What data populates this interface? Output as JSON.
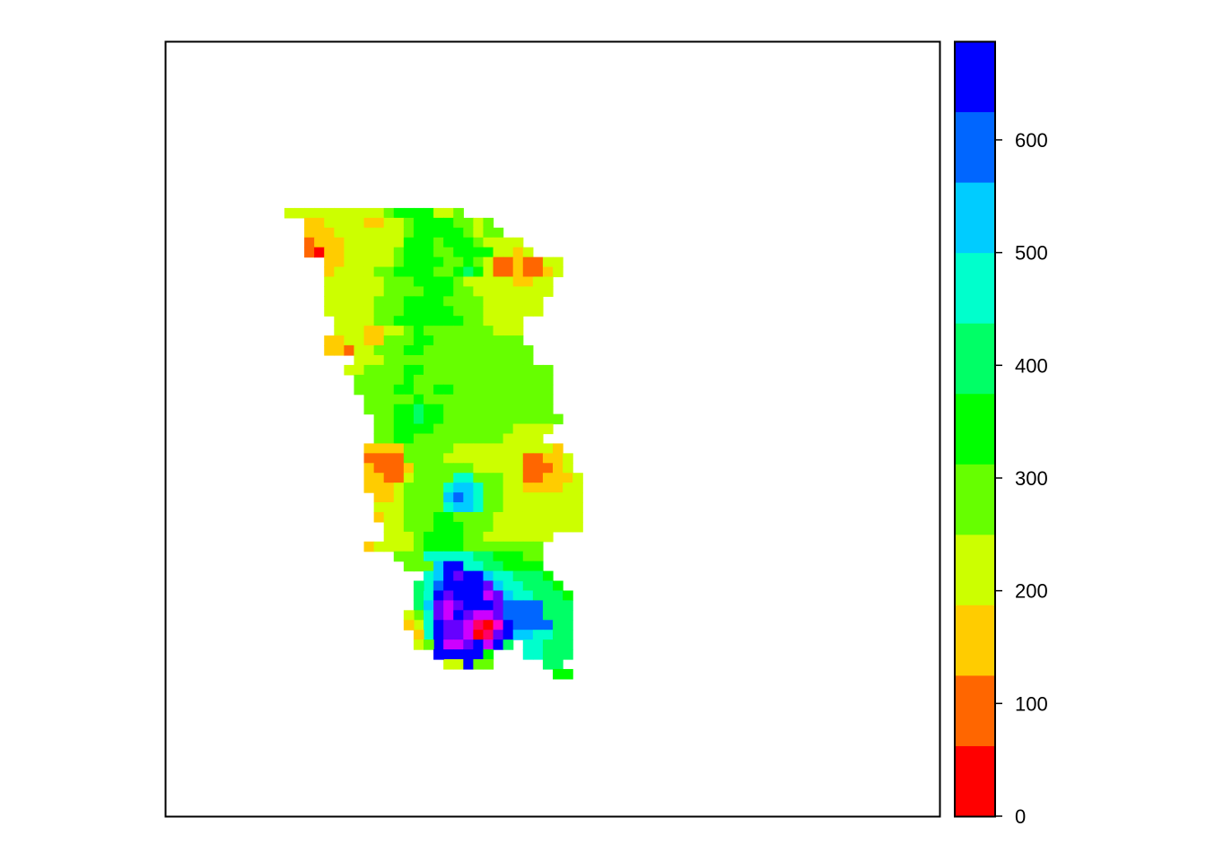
{
  "chart_data": {
    "type": "heatmap",
    "title": "",
    "xlabel": "",
    "ylabel": "",
    "grid": false,
    "legend": "right",
    "colorbar": {
      "range": [
        0,
        687.5
      ],
      "breaks": [
        0,
        62.5,
        125,
        187.5,
        250,
        312.5,
        375,
        437.5,
        500,
        562.5,
        625,
        687.5
      ],
      "colors": [
        "#FF0000",
        "#FF6600",
        "#FFCC00",
        "#CCFF00",
        "#66FF00",
        "#00FF00",
        "#00FF66",
        "#00FFCC",
        "#00CCFF",
        "#0066FF",
        "#0000FF",
        "#6600FF",
        "#CC00FF",
        "#FF00CC",
        "#FF0066",
        "#FF0000"
      ],
      "ticks": [
        {
          "value": 0,
          "label": "0"
        },
        {
          "value": 100,
          "label": "100"
        },
        {
          "value": 200,
          "label": "200"
        },
        {
          "value": 300,
          "label": "300"
        },
        {
          "value": 400,
          "label": "400"
        },
        {
          "value": 500,
          "label": "500"
        },
        {
          "value": 600,
          "label": "600"
        }
      ]
    },
    "grid_cols": 78,
    "grid_rows": 79,
    "row_offset": 16,
    "col_offset": 10,
    "cell_values": [
      "...........................",
      "..DDDDDDDDDDEFFFFDDE........",
      "....CCDDDDCCDDEFFFFEEDE......",
      "....CCCDDDDDDDEFFFFFEDEE....",
      "....BCCCDDDDDDFFFEFFFEDDDD....",
      "....BACCDDDDDEFFFEEFFFFDDCD...",
      "......CCDDDDDEFFFFEEFEDBBCBBDD",
      "......CDDDDEEFFFFEEFGFDBBCBBCD",
      "......DDDDDDEEEFFFFEDDDDDCCDD.",
      "......DDDDDDEEEEFFFEEDDDDDDDD.",
      "......DDDDDEEEFFFFEEEEDDDDDD..",
      "......DDDDDEEEFFFFFEEEDDDDDD..",
      ".......DDDDEEFFFFFFFEEDDDD....",
      ".......DDDCCDDEFEEEEEEEDDD....",
      "......CCDDCCEEEFFEEEEEEEEE....",
      "......CCBDDEEEFFEEEEEEEEEEE...",
      ".........DDDEEEEEEEEEEEEEEE...",
      "........DDEEEEFFEEEEEEEEEEEEE.",
      ".........EEEEEFEEEEEEEEEEEEEE.",
      ".........EEEEFFEEFFEEEEEEEEEE.",
      "..........EEEEEFEEEEEEEEEEEEE.",
      "..........EEEFFGFFEEEEEEEEEEE.",
      "...........EEFFGFFEEEEEEEEEEEE.",
      "...........EEFFFFEEEEEEEEDDDD..",
      "...........EEFFEEEEEEEEEDDDD...",
      "..........CCCCEEEEEDDDDDDDDDDC.",
      "..........BBBBEEEEDDDDDDDDBBCCD.",
      "..........CBBBCEEEEEEDDDDDBBBCD.",
      "..........CCBBDEEEEHHEEEDDBBCCCD",
      "..........CCCDEEEEHIIHEEDDCCCCDD",
      "...........CCDEEEEIJIHEEDDDDDDDD",
      "...........DDDEEEEHIIHEEDDDDDDDD",
      "...........CDDEEEFFEEEEDDDDDDDDD",
      "............DDEEEFFFEEEDDDDDDDDD",
      "............DDEFFHHEEDDDDDDDD...",
      "............DDDDFHHHEEEEEEEE....",
      ".............EEEFFFFFEEEEEEE....",
      "..............EEEFFFFFEEEE......",
      "................FFFGGGGGG.......",
      "................FFGHHHHGGG......",
      "...............CCDDEEGGHHH......",
      "...............BBDDEGGHHH.......",
      "...............CABDFGGIIH.......",
      "...............BBCDFFFHHG.......",
      "................CCDGHHHGG.......",
      ".................CDFFFGGG.......",
      "..................EEEFF.........",
      "..................DDEEE........."
    ],
    "region_cells": [
      [
        12,
        34,
        "D"
      ],
      [
        13,
        34,
        "D"
      ],
      [
        14,
        34,
        "D"
      ],
      [
        15,
        34,
        "E"
      ],
      [
        16,
        34,
        "F"
      ],
      [
        17,
        34,
        "F"
      ],
      [
        18,
        34,
        "F"
      ],
      [
        19,
        34,
        "F"
      ],
      [
        20,
        34,
        "E"
      ],
      [
        21,
        34,
        "E"
      ],
      [
        10,
        35,
        "C"
      ],
      [
        11,
        35,
        "D"
      ],
      [
        12,
        35,
        "D"
      ],
      [
        13,
        35,
        "D"
      ],
      [
        14,
        35,
        "D"
      ],
      [
        15,
        35,
        "E"
      ],
      [
        16,
        35,
        "F"
      ],
      [
        17,
        35,
        "F"
      ],
      [
        18,
        35,
        "F"
      ],
      [
        19,
        35,
        "F"
      ],
      [
        20,
        35,
        "E"
      ],
      [
        21,
        35,
        "E"
      ],
      [
        16,
        36,
        "H"
      ],
      [
        17,
        36,
        "H"
      ],
      [
        18,
        36,
        "H"
      ],
      [
        19,
        36,
        "H"
      ],
      [
        20,
        36,
        "H"
      ],
      [
        21,
        36,
        "G"
      ],
      [
        22,
        36,
        "G"
      ],
      [
        23,
        36,
        "F"
      ],
      [
        24,
        36,
        "F"
      ],
      [
        25,
        36,
        "F"
      ],
      [
        26,
        36,
        "E"
      ],
      [
        17,
        37,
        "I"
      ],
      [
        18,
        37,
        "K"
      ],
      [
        19,
        37,
        "K"
      ],
      [
        20,
        37,
        "H"
      ],
      [
        21,
        37,
        "H"
      ],
      [
        22,
        37,
        "G"
      ],
      [
        23,
        37,
        "G"
      ],
      [
        24,
        37,
        "F"
      ],
      [
        25,
        37,
        "F"
      ],
      [
        26,
        37,
        "F"
      ],
      [
        27,
        37,
        "F"
      ],
      [
        16,
        38,
        "H"
      ],
      [
        17,
        38,
        "I"
      ],
      [
        18,
        38,
        "K"
      ],
      [
        19,
        38,
        "L"
      ],
      [
        20,
        38,
        "K"
      ],
      [
        21,
        38,
        "K"
      ],
      [
        22,
        38,
        "I"
      ],
      [
        23,
        38,
        "H"
      ],
      [
        24,
        38,
        "H"
      ],
      [
        25,
        38,
        "G"
      ],
      [
        26,
        38,
        "G"
      ],
      [
        27,
        38,
        "G"
      ],
      [
        28,
        38,
        "F"
      ],
      [
        15,
        39,
        "G"
      ],
      [
        16,
        39,
        "H"
      ],
      [
        17,
        39,
        "J"
      ],
      [
        18,
        39,
        "K"
      ],
      [
        19,
        39,
        "K"
      ],
      [
        20,
        39,
        "K"
      ],
      [
        21,
        39,
        "K"
      ],
      [
        22,
        39,
        "L"
      ],
      [
        23,
        39,
        "I"
      ],
      [
        24,
        39,
        "H"
      ],
      [
        25,
        39,
        "H"
      ],
      [
        26,
        39,
        "G"
      ],
      [
        27,
        39,
        "G"
      ],
      [
        28,
        39,
        "G"
      ],
      [
        29,
        39,
        "F"
      ],
      [
        15,
        40,
        "G"
      ],
      [
        16,
        40,
        "H"
      ],
      [
        17,
        40,
        "K"
      ],
      [
        18,
        40,
        "L"
      ],
      [
        19,
        40,
        "K"
      ],
      [
        20,
        40,
        "K"
      ],
      [
        21,
        40,
        "K"
      ],
      [
        22,
        40,
        "M"
      ],
      [
        23,
        40,
        "L"
      ],
      [
        24,
        40,
        "I"
      ],
      [
        25,
        40,
        "H"
      ],
      [
        26,
        40,
        "H"
      ],
      [
        27,
        40,
        "G"
      ],
      [
        28,
        40,
        "G"
      ],
      [
        29,
        40,
        "G"
      ],
      [
        30,
        40,
        "F"
      ],
      [
        15,
        41,
        "G"
      ],
      [
        16,
        41,
        "I"
      ],
      [
        17,
        41,
        "L"
      ],
      [
        18,
        41,
        "M"
      ],
      [
        19,
        41,
        "L"
      ],
      [
        20,
        41,
        "K"
      ],
      [
        21,
        41,
        "K"
      ],
      [
        22,
        41,
        "K"
      ],
      [
        23,
        41,
        "L"
      ],
      [
        24,
        41,
        "J"
      ],
      [
        25,
        41,
        "J"
      ],
      [
        26,
        41,
        "J"
      ],
      [
        27,
        41,
        "J"
      ],
      [
        28,
        41,
        "G"
      ],
      [
        29,
        41,
        "G"
      ],
      [
        30,
        41,
        "G"
      ],
      [
        14,
        42,
        "D"
      ],
      [
        15,
        42,
        "E"
      ],
      [
        16,
        42,
        "H"
      ],
      [
        17,
        42,
        "L"
      ],
      [
        18,
        42,
        "M"
      ],
      [
        19,
        42,
        "K"
      ],
      [
        20,
        42,
        "L"
      ],
      [
        21,
        42,
        "M"
      ],
      [
        22,
        42,
        "M"
      ],
      [
        23,
        42,
        "L"
      ],
      [
        24,
        42,
        "J"
      ],
      [
        25,
        42,
        "J"
      ],
      [
        26,
        42,
        "J"
      ],
      [
        27,
        42,
        "J"
      ],
      [
        28,
        42,
        "G"
      ],
      [
        29,
        42,
        "G"
      ],
      [
        30,
        42,
        "G"
      ],
      [
        14,
        43,
        "C"
      ],
      [
        15,
        43,
        "D"
      ],
      [
        16,
        43,
        "H"
      ],
      [
        17,
        43,
        "K"
      ],
      [
        18,
        43,
        "L"
      ],
      [
        19,
        43,
        "L"
      ],
      [
        20,
        43,
        "M"
      ],
      [
        21,
        43,
        "O"
      ],
      [
        22,
        43,
        "P"
      ],
      [
        23,
        43,
        "N"
      ],
      [
        24,
        43,
        "K"
      ],
      [
        25,
        43,
        "J"
      ],
      [
        26,
        43,
        "J"
      ],
      [
        27,
        43,
        "J"
      ],
      [
        28,
        43,
        "J"
      ],
      [
        29,
        43,
        "G"
      ],
      [
        30,
        43,
        "G"
      ],
      [
        15,
        44,
        "C"
      ],
      [
        16,
        44,
        "H"
      ],
      [
        17,
        44,
        "K"
      ],
      [
        18,
        44,
        "L"
      ],
      [
        19,
        44,
        "L"
      ],
      [
        20,
        44,
        "M"
      ],
      [
        21,
        44,
        "P"
      ],
      [
        22,
        44,
        "O"
      ],
      [
        23,
        44,
        "L"
      ],
      [
        24,
        44,
        "K"
      ],
      [
        25,
        44,
        "I"
      ],
      [
        26,
        44,
        "I"
      ],
      [
        27,
        44,
        "H"
      ],
      [
        28,
        44,
        "H"
      ],
      [
        29,
        44,
        "G"
      ],
      [
        30,
        44,
        "G"
      ],
      [
        15,
        45,
        "D"
      ],
      [
        16,
        45,
        "E"
      ],
      [
        17,
        45,
        "K"
      ],
      [
        18,
        45,
        "M"
      ],
      [
        19,
        45,
        "M"
      ],
      [
        20,
        45,
        "L"
      ],
      [
        21,
        45,
        "K"
      ],
      [
        22,
        45,
        "M"
      ],
      [
        23,
        45,
        "K"
      ],
      [
        26,
        45,
        "H"
      ],
      [
        27,
        45,
        "H"
      ],
      [
        28,
        45,
        "G"
      ],
      [
        29,
        45,
        "G"
      ],
      [
        30,
        45,
        "G"
      ],
      [
        17,
        46,
        "K"
      ],
      [
        18,
        46,
        "K"
      ],
      [
        19,
        46,
        "K"
      ],
      [
        20,
        46,
        "K"
      ],
      [
        21,
        46,
        "K"
      ],
      [
        26,
        46,
        "H"
      ],
      [
        27,
        46,
        "H"
      ],
      [
        28,
        46,
        "G"
      ],
      [
        29,
        46,
        "G"
      ],
      [
        30,
        46,
        "G"
      ],
      [
        20,
        47,
        "K"
      ],
      [
        28,
        47,
        "G"
      ],
      [
        29,
        47,
        "G"
      ],
      [
        29,
        48,
        "F"
      ],
      [
        30,
        48,
        "F"
      ]
    ]
  }
}
